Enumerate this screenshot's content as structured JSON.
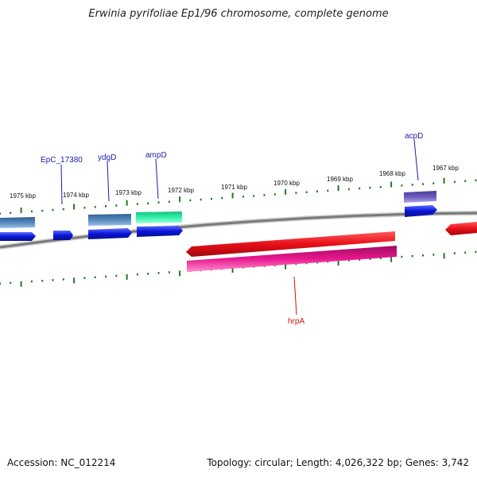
{
  "title": "Erwinia pyrifoliae Ep1/96 chromosome, complete genome",
  "footer": {
    "accession": "Accession: NC_012214",
    "summary": "Topology: circular; Length: 4,026,322 bp; Genes: 3,742"
  },
  "scale": {
    "labels": [
      "1975 kbp",
      "1974 kbp",
      "1973 kbp",
      "1972 kbp",
      "1971 kbp",
      "1970 kbp",
      "1969 kbp",
      "1968 kbp",
      "1967 kbp"
    ]
  },
  "gene_labels": {
    "epc": "EpC_17380",
    "ydgd": "ydgD",
    "ampd": "ampD",
    "acpd": "acpD",
    "hrpa": "hrpA"
  },
  "colors": {
    "forward_gene": "#0a14d8",
    "reverse_gene": "#e80f1a",
    "cds_steelblue": "#4f7fb0",
    "cds_green": "#22e8a0",
    "cds_purple": "#6a55b5",
    "cds_magenta": "#e0188a",
    "backbone": "#7a7a7a",
    "tick": "#1e7a1e",
    "label_blue": "#1a1ab0",
    "label_red": "#d01010"
  }
}
